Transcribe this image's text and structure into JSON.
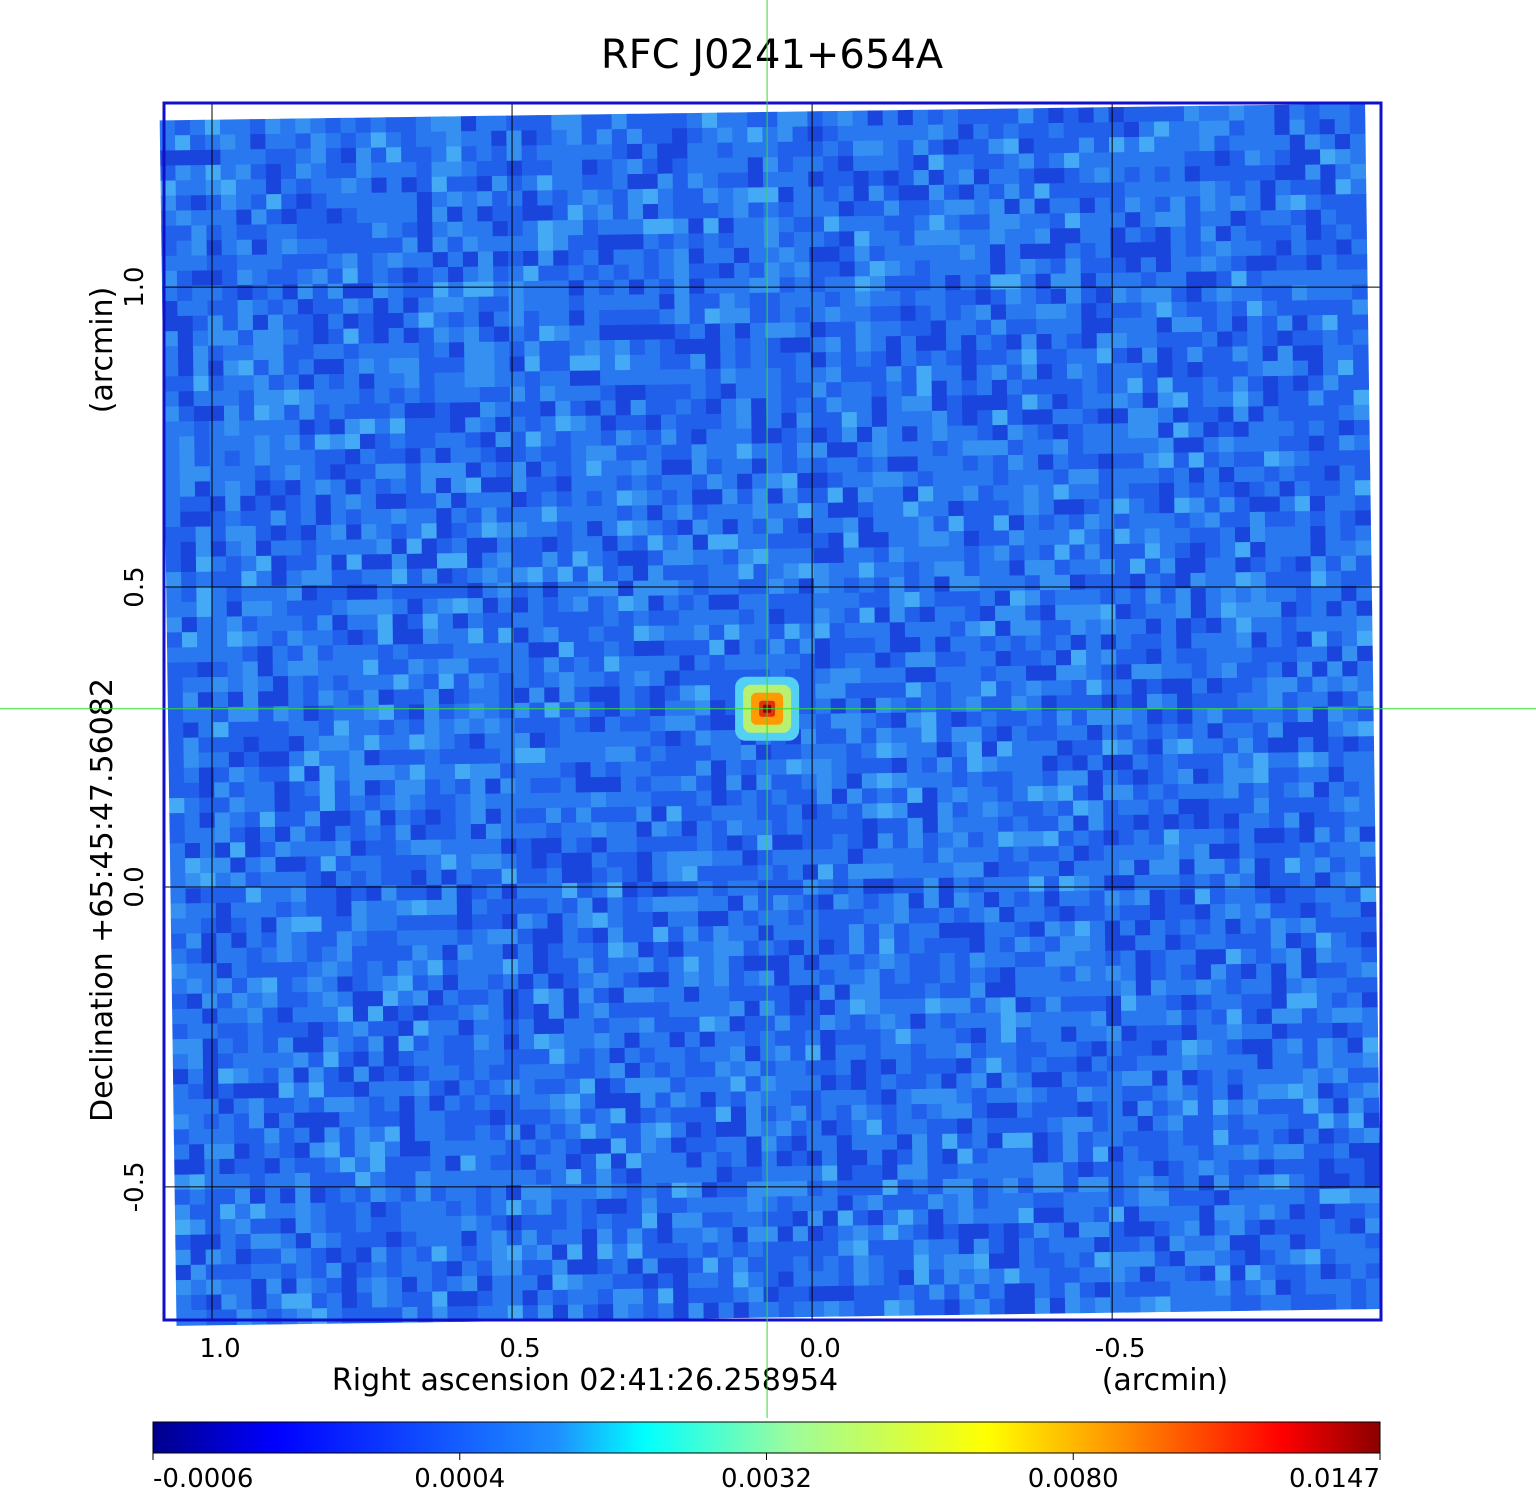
{
  "chart_data": {
    "type": "image",
    "title": "RFC J0241+654A",
    "x_label": "Right ascension  02:41:26.258954",
    "x_unit": "(arcmin)",
    "y_label": "Declination  +65:45:47.56082",
    "y_unit": "(arcmin)",
    "xlim": [
      1.08,
      -0.948
    ],
    "ylim": [
      -0.722,
      1.307
    ],
    "xticks": [
      {
        "value": 1,
        "label": "1.0"
      },
      0.5,
      {
        "value": 0,
        "label": "0.0"
      },
      -0.5
    ],
    "yticks": [
      -0.5,
      {
        "value": 0,
        "label": "0.0"
      },
      0.5,
      {
        "value": 1,
        "label": "1.0"
      }
    ],
    "grid": true,
    "crosshair": {
      "x": 0.075,
      "y": 0.297
    },
    "colorbar_ticks": [
      -0.0006,
      0.0004,
      0.0032,
      {
        "value": 0.008,
        "label": "0.0080"
      },
      0.0147
    ],
    "frame_color": "#1010c8",
    "crosshair_color": "#33dd33"
  }
}
